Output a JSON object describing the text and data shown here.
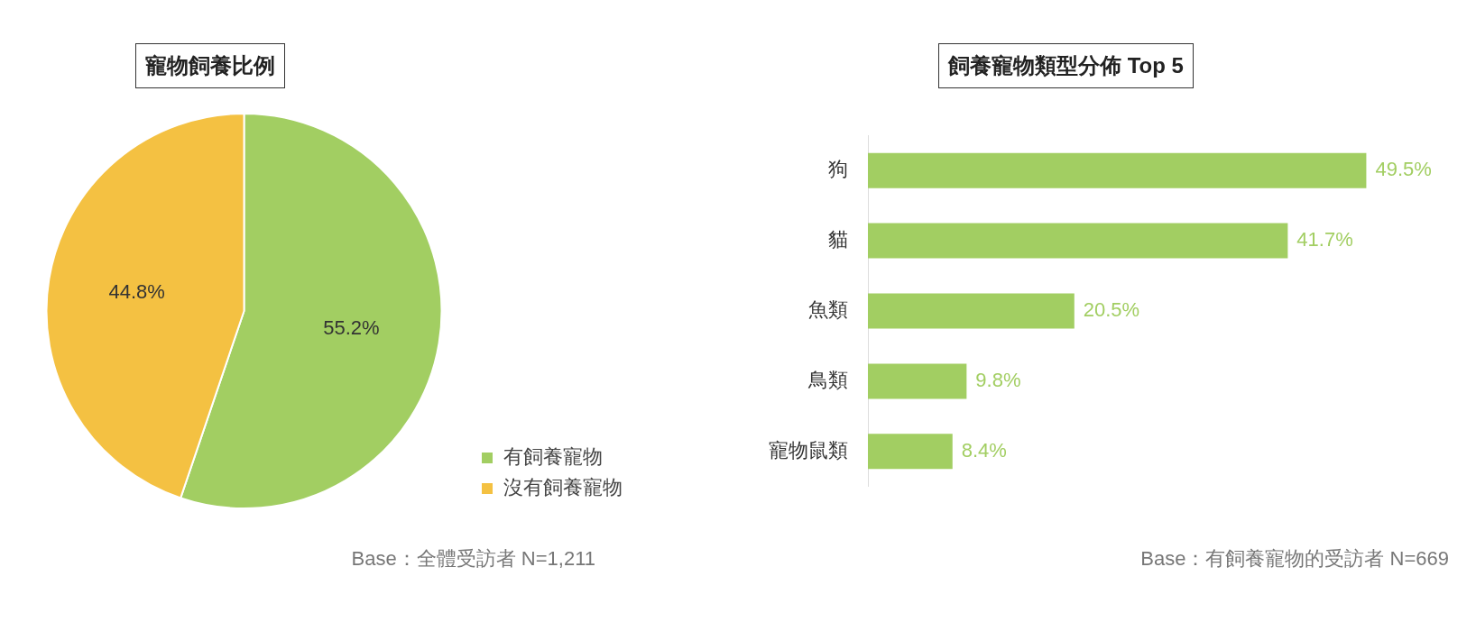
{
  "chart_data": [
    {
      "type": "pie",
      "title": "寵物飼養比例",
      "categories": [
        "有飼養寵物",
        "沒有飼養寵物"
      ],
      "values": [
        55.2,
        44.8
      ],
      "value_labels": [
        "55.2%",
        "44.8%"
      ],
      "colors": [
        "#a2ce62",
        "#f4c142"
      ],
      "legend": "bottom right",
      "annotations": [
        "Base：全體受訪者 N=1,211"
      ]
    },
    {
      "type": "bar",
      "orientation": "horizontal",
      "title": "飼養寵物類型分佈 Top 5",
      "categories": [
        "狗",
        "貓",
        "魚類",
        "鳥類",
        "寵物鼠類"
      ],
      "values": [
        49.5,
        41.7,
        20.5,
        9.8,
        8.4
      ],
      "value_labels": [
        "49.5%",
        "41.7%",
        "20.5%",
        "9.8%",
        "8.4%"
      ],
      "color": "#a2ce62",
      "grid": false,
      "legend": false,
      "annotations": [
        "Base：有飼養寵物的受訪者 N=669"
      ]
    }
  ]
}
